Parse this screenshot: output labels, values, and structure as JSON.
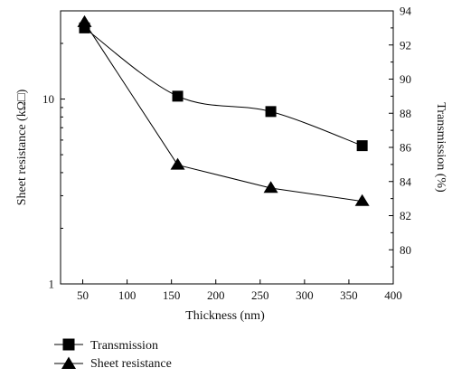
{
  "chart_data": {
    "type": "line",
    "xlabel": "Thickness (nm)",
    "ylabel_left": "Sheet resistance (kΩ□)",
    "ylabel_right": "Transmission (%)",
    "x_ticks": [
      "50",
      "100",
      "150",
      "200",
      "250",
      "300",
      "350",
      "400"
    ],
    "x_tick_values": [
      50,
      100,
      150,
      200,
      250,
      300,
      350,
      400
    ],
    "y_left_ticks": [
      "1",
      "10"
    ],
    "y_left_tick_values": [
      1,
      10
    ],
    "y_right_ticks": [
      "80",
      "82",
      "84",
      "86",
      "88",
      "90",
      "92",
      "94"
    ],
    "y_right_tick_values": [
      80,
      82,
      84,
      86,
      88,
      90,
      92,
      94
    ],
    "xlim": [
      25,
      400
    ],
    "ylim_left": [
      1,
      30
    ],
    "y_left_scale": "log",
    "ylim_right": [
      78,
      94
    ],
    "grid": false,
    "legend_position": "bottom-left",
    "series": [
      {
        "name": "Transmission",
        "axis": "right",
        "marker": "square",
        "x": [
          52,
          157,
          262,
          365
        ],
        "y": [
          93.0,
          89.0,
          88.1,
          86.1
        ]
      },
      {
        "name": "Sheet resistance",
        "axis": "left",
        "marker": "triangle",
        "x": [
          52,
          157,
          262,
          365
        ],
        "y": [
          26,
          4.4,
          3.3,
          2.8
        ]
      }
    ]
  }
}
